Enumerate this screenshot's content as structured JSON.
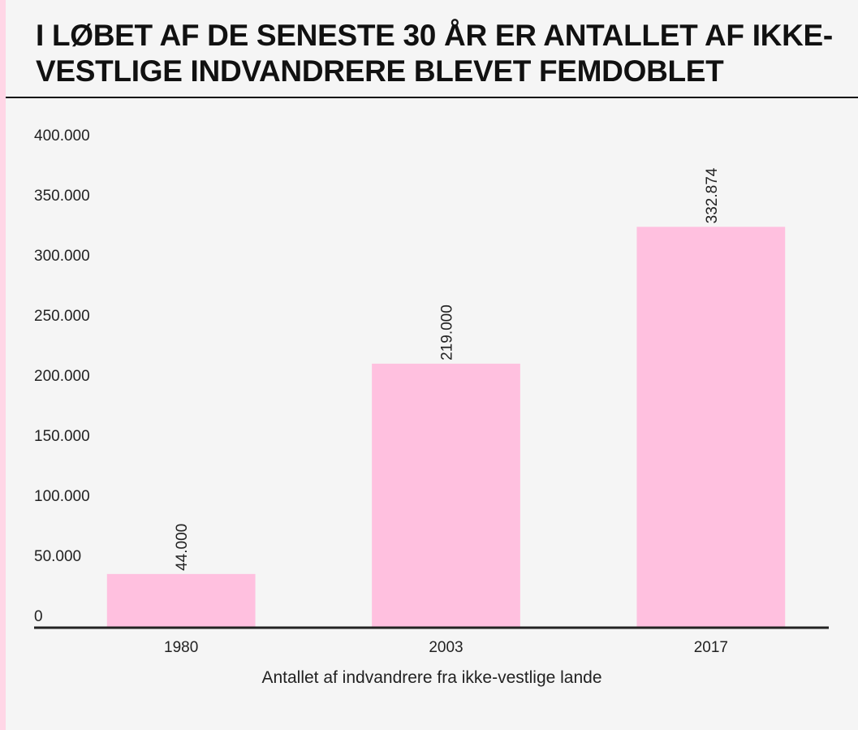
{
  "title": "I LØBET AF DE SENESTE 30 ÅR ER ANTALLET AF IKKE-VESTLIGE INDVANDRERE BLEVET FEMDOBLET",
  "colors": {
    "bar": "#ffc0df",
    "accent_strip": "#ffd6e6",
    "background": "#f5f5f5",
    "axis": "#222222"
  },
  "chart_data": {
    "type": "bar",
    "title": "I LØBET AF DE SENESTE 30 ÅR ER ANTALLET AF IKKE-VESTLIGE INDVANDRERE BLEVET FEMDOBLET",
    "categories": [
      "1980",
      "2003",
      "2017"
    ],
    "values": [
      44000,
      219000,
      332874
    ],
    "data_labels": [
      "44.000",
      "219.000",
      "332.874"
    ],
    "xlabel": "Antallet af indvandrere fra ikke-vestlige lande",
    "ylabel": "",
    "ylim": [
      0,
      400000
    ],
    "y_ticks": [
      0,
      50000,
      100000,
      150000,
      200000,
      250000,
      300000,
      350000,
      400000
    ],
    "y_tick_labels": [
      "0",
      "50.000",
      "100.000",
      "150.000",
      "200.000",
      "250.000",
      "300.000",
      "350.000",
      "400.000"
    ],
    "grid": false,
    "legend": "none"
  }
}
